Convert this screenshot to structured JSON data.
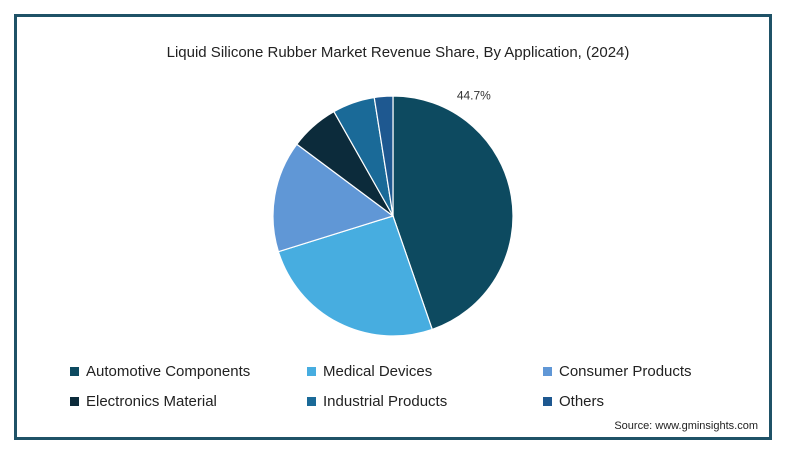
{
  "chart_data": {
    "type": "pie",
    "title": "Liquid Silicone Rubber Market Revenue Share, By Application,  (2024)",
    "slices": [
      {
        "name": "Automotive Components",
        "value": 44.7,
        "color": "#0d4a60",
        "label": "44.7%"
      },
      {
        "name": "Medical Devices",
        "value": 25.5,
        "color": "#47ade0",
        "label": ""
      },
      {
        "name": "Consumer Products",
        "value": 15.0,
        "color": "#6097d6",
        "label": ""
      },
      {
        "name": "Electronics Material",
        "value": 6.6,
        "color": "#0c2b3b",
        "label": ""
      },
      {
        "name": "Industrial Products",
        "value": 5.7,
        "color": "#1a6a98",
        "label": ""
      },
      {
        "name": "Others",
        "value": 2.5,
        "color": "#1e5890",
        "label": ""
      }
    ],
    "start_angle_deg": 0,
    "direction": "clockwise",
    "legend_position": "bottom"
  },
  "source": "Source: www.gminsights.com"
}
